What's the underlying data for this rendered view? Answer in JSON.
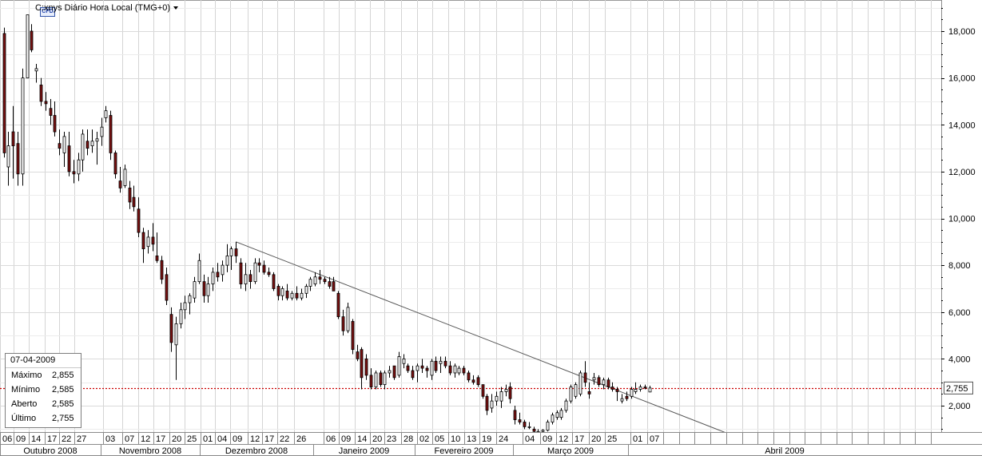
{
  "title": "C:xnys Diário Hora Local (TMG+0)",
  "icon": "cfd-badge-icon",
  "badge_text": "CFD",
  "info_box": {
    "date": "07-04-2009",
    "rows": [
      {
        "label": "Máximo",
        "value": "2,855"
      },
      {
        "label": "Mínimo",
        "value": "2,585"
      },
      {
        "label": "Aberto",
        "value": "2,585"
      },
      {
        "label": "Último",
        "value": "2,755"
      }
    ]
  },
  "colors": {
    "up": "#ffffff",
    "down": "#7a1010",
    "wick": "#000000",
    "grid": "#d4d4d4",
    "last_line": "#cc0000"
  },
  "chart_data": {
    "type": "candlestick",
    "ylim": [
      800,
      19300
    ],
    "y_ticks": [
      "2,000",
      "4,000",
      "6,000",
      "8,000",
      "10,000",
      "12,000",
      "14,000",
      "16,000",
      "18,000"
    ],
    "y_tick_values": [
      2000,
      4000,
      6000,
      8000,
      10000,
      12000,
      14000,
      16000,
      18000
    ],
    "last_price_label": "2,755",
    "last_price": 2755,
    "day_labels": [
      "06",
      "09",
      "14",
      "17",
      "22",
      "27",
      "03",
      "07",
      "12",
      "17",
      "20",
      "25",
      "01",
      "04",
      "09",
      "12",
      "17",
      "22",
      "26",
      "06",
      "09",
      "14",
      "20",
      "23",
      "28",
      "02",
      "05",
      "10",
      "13",
      "19",
      "24",
      "04",
      "09",
      "12",
      "17",
      "20",
      "25",
      "01",
      "07"
    ],
    "month_labels": [
      "Outubro 2008",
      "Novembro 2008",
      "Dezembro 2008",
      "Janeiro 2009",
      "Fevereiro 2009",
      "Março 2009",
      "Abril 2009"
    ],
    "candles": [
      [
        1,
        17900,
        18150,
        12600,
        12800
      ],
      [
        2,
        12200,
        13700,
        11400,
        13100
      ],
      [
        3,
        13700,
        14800,
        11700,
        13100
      ],
      [
        4,
        13200,
        13700,
        11400,
        11900
      ],
      [
        5,
        11900,
        16400,
        11400,
        16000
      ],
      [
        6,
        16000,
        18700,
        16000,
        18700
      ],
      [
        7,
        18000,
        18300,
        17100,
        17200
      ],
      [
        8,
        16300,
        16600,
        15800,
        16400
      ],
      [
        9,
        15700,
        16000,
        14800,
        15000
      ],
      [
        10,
        15000,
        15400,
        14600,
        14900
      ],
      [
        11,
        14700,
        15100,
        14000,
        14400
      ],
      [
        12,
        14400,
        15000,
        13500,
        13700
      ],
      [
        13,
        13200,
        13800,
        12700,
        13000
      ],
      [
        14,
        12800,
        13700,
        12200,
        13500
      ],
      [
        15,
        13100,
        13700,
        11800,
        12000
      ],
      [
        16,
        12000,
        12500,
        11500,
        11900
      ],
      [
        17,
        11900,
        12800,
        11600,
        12500
      ],
      [
        18,
        12500,
        13800,
        12000,
        13600
      ],
      [
        19,
        13300,
        13800,
        12700,
        13000
      ],
      [
        20,
        13100,
        13800,
        12800,
        13300
      ],
      [
        21,
        13300,
        13700,
        12300,
        13400
      ],
      [
        22,
        13500,
        14300,
        13100,
        13900
      ],
      [
        23,
        14300,
        14800,
        14100,
        14600
      ],
      [
        24,
        14400,
        14600,
        12500,
        12800
      ],
      [
        25,
        12800,
        12900,
        11700,
        11900
      ],
      [
        26,
        11600,
        12200,
        11100,
        11300
      ],
      [
        27,
        11400,
        12300,
        11300,
        12100
      ],
      [
        28,
        11300,
        11600,
        10400,
        10700
      ],
      [
        29,
        10900,
        11400,
        10300,
        10500
      ],
      [
        30,
        10400,
        10900,
        9200,
        9400
      ],
      [
        31,
        9400,
        9600,
        8100,
        8700
      ],
      [
        32,
        8800,
        9500,
        8500,
        9200
      ],
      [
        33,
        9200,
        9800,
        8600,
        8900
      ],
      [
        34,
        8400,
        9400,
        8100,
        8200
      ],
      [
        35,
        8200,
        8400,
        7200,
        7400
      ],
      [
        36,
        7600,
        7900,
        6300,
        6500
      ],
      [
        37,
        5900,
        6200,
        4300,
        4700
      ],
      [
        38,
        4600,
        5800,
        3100,
        5500
      ],
      [
        39,
        5500,
        6400,
        5300,
        6100
      ],
      [
        40,
        6100,
        6700,
        5700,
        6400
      ],
      [
        41,
        6400,
        6800,
        5900,
        6700
      ],
      [
        42,
        6600,
        7500,
        6400,
        7300
      ],
      [
        43,
        7300,
        8500,
        7200,
        8200
      ],
      [
        44,
        7300,
        7600,
        6400,
        6700
      ],
      [
        45,
        6700,
        7500,
        6400,
        7200
      ],
      [
        46,
        7200,
        7900,
        6900,
        7700
      ],
      [
        47,
        7700,
        8100,
        7300,
        7500
      ],
      [
        48,
        7600,
        8200,
        7300,
        8000
      ],
      [
        49,
        8000,
        8900,
        7700,
        8400
      ],
      [
        50,
        8400,
        8800,
        7800,
        8700
      ],
      [
        51,
        8700,
        9000,
        8100,
        8400
      ],
      [
        52,
        8100,
        8300,
        7000,
        7200
      ],
      [
        53,
        7200,
        8100,
        6900,
        7600
      ],
      [
        54,
        7600,
        7800,
        7000,
        7300
      ],
      [
        55,
        7300,
        8300,
        7200,
        8100
      ],
      [
        56,
        8100,
        8300,
        7700,
        8000
      ],
      [
        57,
        8000,
        8200,
        7600,
        7700
      ],
      [
        58,
        7700,
        7900,
        7500,
        7600
      ],
      [
        59,
        7600,
        7700,
        6900,
        7000
      ],
      [
        60,
        7100,
        7200,
        6500,
        6700
      ],
      [
        61,
        6700,
        7100,
        6500,
        7000
      ],
      [
        62,
        6900,
        7200,
        6500,
        6600
      ],
      [
        63,
        6600,
        6900,
        6500,
        6800
      ],
      [
        64,
        6800,
        7100,
        6500,
        6600
      ],
      [
        65,
        6600,
        7000,
        6500,
        6800
      ],
      [
        66,
        6800,
        7200,
        6600,
        7100
      ],
      [
        67,
        7100,
        7500,
        6900,
        7400
      ],
      [
        68,
        7200,
        7700,
        7100,
        7500
      ],
      [
        69,
        7500,
        7800,
        7200,
        7400
      ],
      [
        70,
        7400,
        7500,
        7200,
        7300
      ],
      [
        71,
        7300,
        7500,
        7000,
        7100
      ],
      [
        72,
        7300,
        7500,
        6900,
        6900
      ],
      [
        73,
        6800,
        6900,
        5700,
        5800
      ],
      [
        74,
        5800,
        6100,
        5000,
        5200
      ],
      [
        75,
        5200,
        6400,
        5100,
        6200
      ],
      [
        76,
        5600,
        5700,
        4200,
        4400
      ],
      [
        77,
        4300,
        4600,
        3900,
        4000
      ],
      [
        78,
        4400,
        4500,
        2700,
        3200
      ],
      [
        79,
        4000,
        4200,
        3100,
        3300
      ],
      [
        80,
        3300,
        3600,
        2700,
        2800
      ],
      [
        81,
        2800,
        3500,
        2700,
        3400
      ],
      [
        82,
        3400,
        3500,
        2800,
        2900
      ],
      [
        83,
        2900,
        3500,
        2700,
        3400
      ],
      [
        84,
        3400,
        3700,
        3200,
        3500
      ],
      [
        85,
        3700,
        3700,
        3100,
        3200
      ],
      [
        86,
        3300,
        4300,
        3200,
        4100
      ],
      [
        87,
        3800,
        4200,
        3600,
        4000
      ],
      [
        88,
        3700,
        3800,
        3400,
        3500
      ],
      [
        89,
        3500,
        3700,
        3100,
        3200
      ],
      [
        90,
        3500,
        3800,
        3000,
        3700
      ],
      [
        91,
        3700,
        4000,
        3400,
        3600
      ],
      [
        92,
        3600,
        3700,
        3200,
        3500
      ],
      [
        93,
        3300,
        4000,
        3100,
        3900
      ],
      [
        94,
        3900,
        4100,
        3400,
        3500
      ],
      [
        95,
        3800,
        4100,
        3400,
        3900
      ],
      [
        96,
        3900,
        4100,
        3600,
        3700
      ],
      [
        97,
        3700,
        3900,
        3300,
        3400
      ],
      [
        98,
        3400,
        3800,
        3200,
        3700
      ],
      [
        99,
        3400,
        3700,
        3300,
        3600
      ],
      [
        100,
        3600,
        3700,
        3300,
        3400
      ],
      [
        101,
        3400,
        3500,
        3000,
        3100
      ],
      [
        102,
        3100,
        3300,
        2900,
        3000
      ],
      [
        103,
        3200,
        3300,
        2800,
        2900
      ],
      [
        104,
        2900,
        2900,
        2300,
        2400
      ],
      [
        105,
        2400,
        2500,
        1600,
        1800
      ],
      [
        106,
        1900,
        2500,
        1700,
        2200
      ],
      [
        107,
        2200,
        2600,
        2000,
        2400
      ],
      [
        108,
        2200,
        2800,
        1900,
        2600
      ],
      [
        109,
        2600,
        2900,
        2400,
        2700
      ],
      [
        110,
        2800,
        3000,
        2100,
        2300
      ],
      [
        111,
        1800,
        2000,
        1200,
        1400
      ],
      [
        112,
        1400,
        1700,
        1200,
        1300
      ],
      [
        113,
        1300,
        1400,
        1000,
        1100
      ],
      [
        114,
        1100,
        1300,
        1000,
        1100
      ],
      [
        115,
        1000,
        1100,
        850,
        900
      ],
      [
        116,
        900,
        1000,
        800,
        900
      ],
      [
        117,
        900,
        1000,
        800,
        950
      ],
      [
        118,
        950,
        1400,
        900,
        1300
      ],
      [
        119,
        1300,
        1700,
        1200,
        1600
      ],
      [
        120,
        1500,
        1800,
        1400,
        1700
      ],
      [
        121,
        1500,
        1900,
        1400,
        1800
      ],
      [
        122,
        1800,
        2300,
        1700,
        2200
      ],
      [
        123,
        2200,
        2900,
        2100,
        2800
      ],
      [
        124,
        2400,
        3000,
        2300,
        2900
      ],
      [
        125,
        2500,
        3500,
        2400,
        3400
      ],
      [
        126,
        3400,
        3900,
        2800,
        3000
      ],
      [
        127,
        2600,
        3000,
        2300,
        2500
      ],
      [
        128,
        3100,
        3400,
        2900,
        3200
      ],
      [
        129,
        3200,
        3300,
        2800,
        2900
      ],
      [
        130,
        2900,
        3200,
        2700,
        3100
      ],
      [
        131,
        3100,
        3200,
        2700,
        2800
      ],
      [
        132,
        2800,
        3000,
        2600,
        2700
      ],
      [
        133,
        2700,
        2800,
        2200,
        2600
      ],
      [
        134,
        2200,
        2500,
        2100,
        2300
      ],
      [
        135,
        2400,
        2600,
        2200,
        2300
      ],
      [
        136,
        2400,
        2800,
        2300,
        2700
      ],
      [
        137,
        2600,
        3000,
        2500,
        2700
      ],
      [
        138,
        2700,
        2900,
        2600,
        2800
      ],
      [
        139,
        2800,
        2900,
        2700,
        2750
      ],
      [
        140,
        2585,
        2855,
        2585,
        2755
      ]
    ],
    "trendline": {
      "x1": 51,
      "y1": 9000,
      "x2": 157,
      "y2": 800
    }
  }
}
